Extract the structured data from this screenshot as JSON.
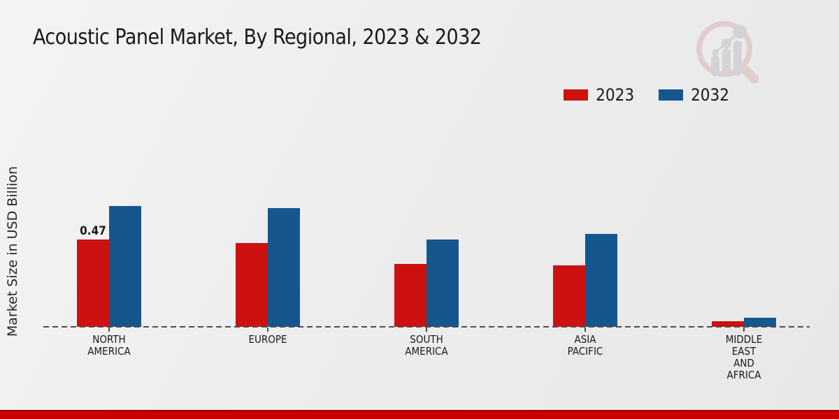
{
  "title": "Acoustic Panel Market, By Regional, 2023 & 2032",
  "ylabel": "Market Size in USD Billion",
  "chart_data": {
    "type": "bar",
    "categories": [
      "NORTH AMERICA",
      "EUROPE",
      "SOUTH AMERICA",
      "ASIA PACIFIC",
      "MIDDLE EAST AND AFRICA"
    ],
    "category_label_lines": [
      [
        "NORTH",
        "AMERICA"
      ],
      [
        "EUROPE"
      ],
      [
        "SOUTH",
        "AMERICA"
      ],
      [
        "ASIA",
        "PACIFIC"
      ],
      [
        "MIDDLE",
        "EAST",
        "AND",
        "AFRICA"
      ]
    ],
    "series": [
      {
        "name": "2023",
        "color": "#cc1111",
        "values": [
          0.47,
          0.45,
          0.34,
          0.33,
          0.03
        ]
      },
      {
        "name": "2032",
        "color": "#15568f",
        "values": [
          0.65,
          0.64,
          0.47,
          0.5,
          0.05
        ]
      }
    ],
    "annotations": [
      {
        "series": "2023",
        "category_index": 0,
        "text": "0.47"
      }
    ],
    "xlabel": "",
    "ylabel": "Market Size in USD Billion",
    "ylim": [
      0,
      0.7
    ],
    "grid": false,
    "legend_position": "top-right",
    "baseline_style": "dashed",
    "axis_color": "#4d4d4d"
  },
  "footer": {
    "band_color": "#c90000",
    "band_edge_color": "#9b0000"
  },
  "watermark": {
    "icon": "magnifier-bar-chart-logo-icon",
    "ring_color": "#d9aaaa",
    "bar_color": "#b8b8bd"
  }
}
